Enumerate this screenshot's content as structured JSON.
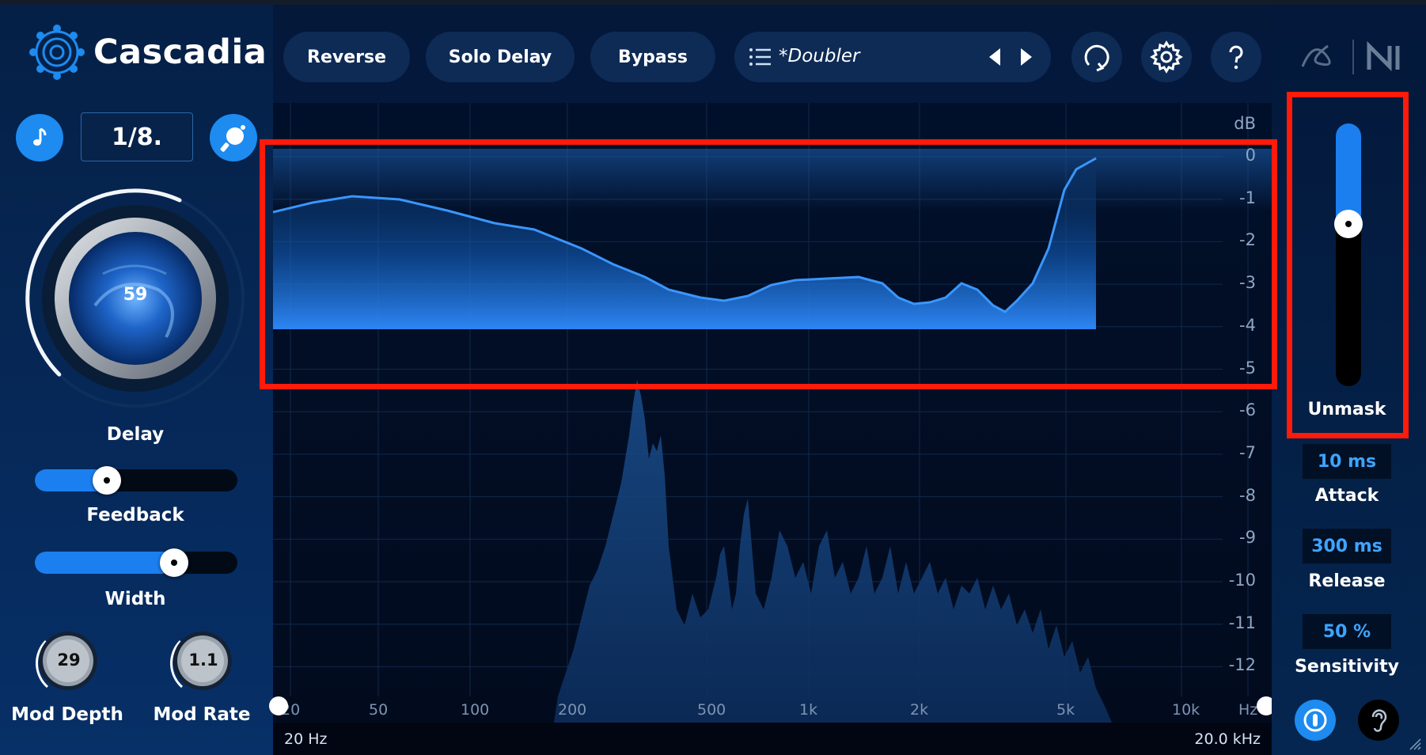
{
  "app": {
    "title": "Cascadia"
  },
  "toolbar": {
    "reverse_label": "Reverse",
    "solo_delay_label": "Solo Delay",
    "bypass_label": "Bypass",
    "preset_name": "*Doubler"
  },
  "delay": {
    "time": "1/8.",
    "value": "59",
    "label": "Delay",
    "level": 0.59
  },
  "feedback": {
    "label": "Feedback",
    "level": 0.33
  },
  "width": {
    "label": "Width",
    "level": 0.72
  },
  "mod_depth": {
    "label": "Mod Depth",
    "value": "29"
  },
  "mod_rate": {
    "label": "Mod Rate",
    "value": "1.1"
  },
  "graph": {
    "db_unit": "dB",
    "db_ticks": [
      "0",
      "-1",
      "-2",
      "-3",
      "-4",
      "-5",
      "-6",
      "-7",
      "-8",
      "-9",
      "-10",
      "-11",
      "-12"
    ],
    "freq_ticks": [
      "20",
      "50",
      "100",
      "200",
      "500",
      "1k",
      "2k",
      "5k",
      "10k",
      "Hz"
    ],
    "range_low": "20 Hz",
    "range_high": "20.0 kHz"
  },
  "unmask": {
    "label": "Unmask",
    "level": 0.63
  },
  "attack": {
    "label": "Attack",
    "value": "10 ms"
  },
  "release": {
    "label": "Release",
    "value": "300 ms"
  },
  "sensitivity": {
    "label": "Sensitivity",
    "value": "50 %"
  },
  "colors": {
    "accent": "#1d8bf0",
    "highlight": "#ff1a0a",
    "value_text": "#3ea4ff"
  },
  "icons": [
    "cascadia-logo-icon",
    "note-icon",
    "ping-pong-icon",
    "list-icon",
    "arrow-left-icon",
    "arrow-right-icon",
    "history-icon",
    "gear-icon",
    "help-icon",
    "izotope-logo-icon",
    "ni-logo-icon",
    "listen-icon",
    "ear-icon"
  ]
}
